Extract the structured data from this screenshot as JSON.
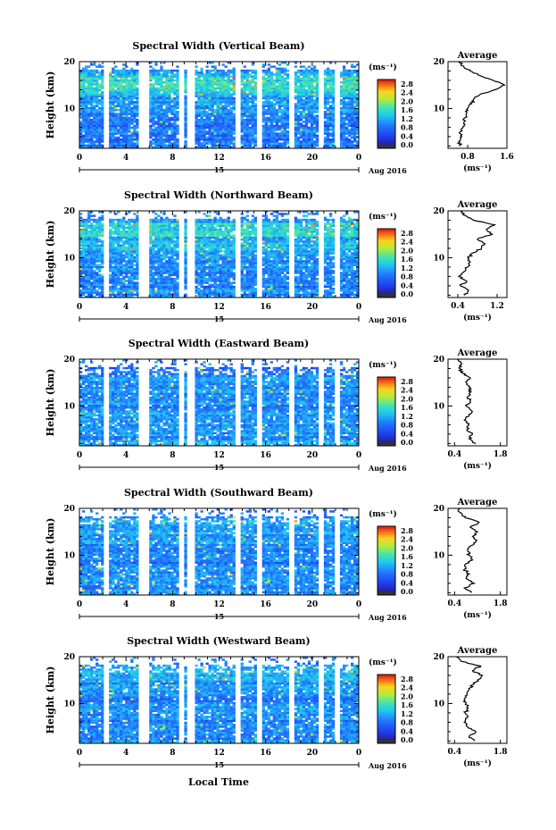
{
  "figure": {
    "xlabel": "Local Time",
    "date_label": "Aug 2016",
    "day_label": "15",
    "ylabel": "Height (km)",
    "colorbar_unit": "(ms⁻¹)",
    "colorbar_ticks": [
      "0.0",
      "0.4",
      "0.8",
      "1.2",
      "1.6",
      "2.0",
      "2.4",
      "2.8"
    ],
    "x_ticks": [
      "0",
      "4",
      "8",
      "12",
      "16",
      "20",
      "0"
    ],
    "y_ticks": [
      "10",
      "20"
    ],
    "avg_title": "Average",
    "avg_xlabel": "(ms⁻¹)"
  },
  "colors": {
    "background_low": "#1f3fe0",
    "mid": "#18c8e0",
    "high": "#e01818"
  },
  "chart_data": [
    {
      "type": "heatmap",
      "title": "Spectral Width (Vertical Beam)",
      "xlabel": "Local Time",
      "ylabel": "Height (km)",
      "xlim": [
        0,
        24
      ],
      "ylim": [
        1.5,
        20
      ],
      "clim": [
        0.0,
        3.0
      ],
      "data_gaps_hours": [
        [
          2.0,
          2.5
        ],
        [
          5.0,
          6.0
        ],
        [
          8.6,
          9.0
        ],
        [
          9.3,
          10.0
        ],
        [
          13.3,
          13.8
        ],
        [
          15.2,
          15.7
        ],
        [
          18.0,
          18.5
        ],
        [
          20.5,
          20.9
        ],
        [
          22.0,
          22.4
        ]
      ],
      "profile": {
        "title": "Average",
        "xlabel": "(ms⁻¹)",
        "xlim": [
          0.4,
          1.6
        ],
        "x_ticks": [
          "0.8",
          "1.6"
        ],
        "height_km": [
          2,
          3,
          4,
          5,
          6,
          7,
          8,
          9,
          10,
          11,
          12,
          13,
          14,
          15,
          16,
          17,
          18,
          19,
          20
        ],
        "values": [
          0.65,
          0.62,
          0.68,
          0.64,
          0.7,
          0.72,
          0.74,
          0.78,
          0.8,
          0.88,
          0.92,
          1.05,
          1.35,
          1.55,
          1.32,
          1.05,
          0.85,
          0.72,
          0.62
        ]
      }
    },
    {
      "type": "heatmap",
      "title": "Spectral Width (Northward Beam)",
      "xlabel": "Local Time",
      "ylabel": "Height (km)",
      "xlim": [
        0,
        24
      ],
      "ylim": [
        1.5,
        20
      ],
      "clim": [
        0.0,
        3.0
      ],
      "data_gaps_hours": [
        [
          2.0,
          2.5
        ],
        [
          5.0,
          6.0
        ],
        [
          8.6,
          9.0
        ],
        [
          9.3,
          10.0
        ],
        [
          13.3,
          13.8
        ],
        [
          15.2,
          15.7
        ],
        [
          18.0,
          18.5
        ],
        [
          20.5,
          20.9
        ],
        [
          22.0,
          22.4
        ]
      ],
      "profile": {
        "title": "Average",
        "xlabel": "(ms⁻¹)",
        "xlim": [
          0.2,
          1.4
        ],
        "x_ticks": [
          "0.4",
          "1.2"
        ],
        "height_km": [
          2,
          3,
          4,
          5,
          6,
          7,
          8,
          9,
          10,
          11,
          12,
          13,
          14,
          15,
          16,
          17,
          18,
          19,
          20
        ],
        "values": [
          0.55,
          0.62,
          0.45,
          0.58,
          0.42,
          0.52,
          0.6,
          0.65,
          0.62,
          0.7,
          0.88,
          0.95,
          0.8,
          1.1,
          0.98,
          1.15,
          0.72,
          0.55,
          0.45
        ]
      }
    },
    {
      "type": "heatmap",
      "title": "Spectral Width (Eastward Beam)",
      "xlabel": "Local Time",
      "ylabel": "Height (km)",
      "xlim": [
        0,
        24
      ],
      "ylim": [
        1.5,
        20
      ],
      "clim": [
        0.0,
        3.0
      ],
      "data_gaps_hours": [
        [
          2.0,
          2.5
        ],
        [
          5.0,
          6.0
        ],
        [
          8.6,
          9.0
        ],
        [
          9.3,
          10.0
        ],
        [
          13.3,
          13.8
        ],
        [
          15.2,
          15.7
        ],
        [
          18.0,
          18.5
        ],
        [
          20.5,
          20.9
        ],
        [
          22.0,
          22.4
        ]
      ],
      "profile": {
        "title": "Average",
        "xlabel": "(ms⁻¹)",
        "xlim": [
          0.2,
          2.0
        ],
        "x_ticks": [
          "0.4",
          "1.8"
        ],
        "height_km": [
          2,
          3,
          4,
          5,
          6,
          7,
          8,
          9,
          10,
          11,
          12,
          13,
          14,
          15,
          16,
          17,
          18,
          19,
          20
        ],
        "values": [
          1.05,
          0.85,
          0.95,
          0.78,
          0.82,
          0.7,
          0.85,
          0.92,
          0.75,
          0.88,
          0.8,
          0.9,
          0.85,
          0.75,
          0.88,
          0.65,
          0.55,
          0.62,
          0.48
        ]
      }
    },
    {
      "type": "heatmap",
      "title": "Spectral Width (Southward Beam)",
      "xlabel": "Local Time",
      "ylabel": "Height (km)",
      "xlim": [
        0,
        24
      ],
      "ylim": [
        1.5,
        20
      ],
      "clim": [
        0.0,
        3.0
      ],
      "data_gaps_hours": [
        [
          2.0,
          2.5
        ],
        [
          5.0,
          6.0
        ],
        [
          8.6,
          9.0
        ],
        [
          9.3,
          10.0
        ],
        [
          13.3,
          13.8
        ],
        [
          15.2,
          15.7
        ],
        [
          18.0,
          18.5
        ],
        [
          20.5,
          20.9
        ],
        [
          22.0,
          22.4
        ]
      ],
      "profile": {
        "title": "Average",
        "xlabel": "(ms⁻¹)",
        "xlim": [
          0.2,
          2.0
        ],
        "x_ticks": [
          "0.4",
          "1.8"
        ],
        "height_km": [
          2,
          3,
          4,
          5,
          6,
          7,
          8,
          9,
          10,
          11,
          12,
          13,
          14,
          15,
          16,
          17,
          18,
          19,
          20
        ],
        "values": [
          0.9,
          0.7,
          1.0,
          0.75,
          0.85,
          0.7,
          0.72,
          0.95,
          0.85,
          0.8,
          0.9,
          1.05,
          0.95,
          1.1,
          0.88,
          1.15,
          0.72,
          0.6,
          0.5
        ]
      }
    },
    {
      "type": "heatmap",
      "title": "Spectral Width (Westward Beam)",
      "xlabel": "Local Time",
      "ylabel": "Height (km)",
      "xlim": [
        0,
        24
      ],
      "ylim": [
        1.5,
        20
      ],
      "clim": [
        0.0,
        3.0
      ],
      "data_gaps_hours": [
        [
          2.0,
          2.5
        ],
        [
          5.0,
          6.0
        ],
        [
          8.6,
          9.0
        ],
        [
          9.3,
          10.0
        ],
        [
          13.3,
          13.8
        ],
        [
          15.2,
          15.7
        ],
        [
          18.0,
          18.5
        ],
        [
          20.5,
          20.9
        ],
        [
          22.0,
          22.4
        ]
      ],
      "profile": {
        "title": "Average",
        "xlabel": "(ms⁻¹)",
        "xlim": [
          0.2,
          2.0
        ],
        "x_ticks": [
          "0.4",
          "1.8"
        ],
        "height_km": [
          2,
          3,
          4,
          5,
          6,
          7,
          8,
          9,
          10,
          11,
          12,
          13,
          14,
          15,
          16,
          17,
          18,
          19,
          20
        ],
        "values": [
          1.0,
          0.85,
          1.05,
          0.8,
          0.7,
          0.78,
          0.72,
          0.82,
          0.75,
          0.7,
          0.78,
          0.85,
          0.95,
          1.1,
          1.25,
          0.95,
          1.2,
          0.6,
          0.45
        ]
      }
    }
  ]
}
